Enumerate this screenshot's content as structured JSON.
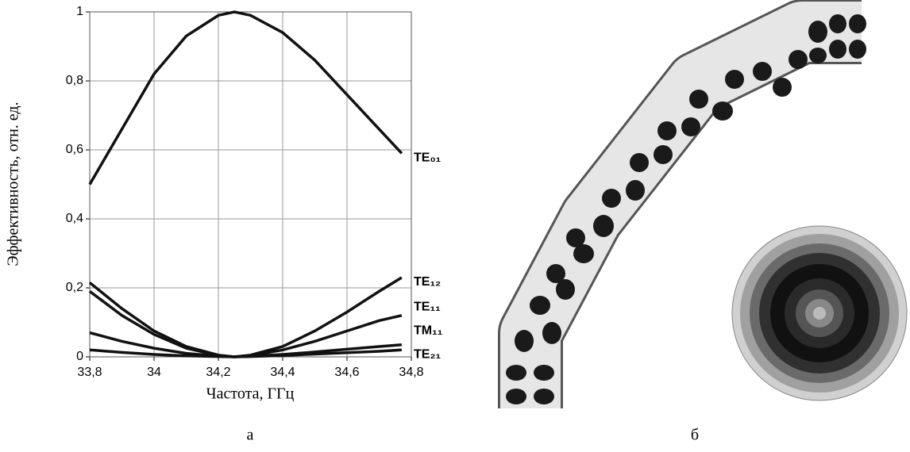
{
  "chart_data": {
    "type": "line",
    "xlabel": "Частота, ГГц",
    "ylabel": "Эффективность, отн. ед.",
    "x": [
      33.8,
      33.9,
      34.0,
      34.1,
      34.2,
      34.25,
      34.3,
      34.4,
      34.5,
      34.6,
      34.7,
      34.77
    ],
    "series": [
      {
        "name": "TE₀₁",
        "color": "#111111",
        "values": [
          0.5,
          0.66,
          0.82,
          0.93,
          0.99,
          1.0,
          0.99,
          0.94,
          0.86,
          0.76,
          0.66,
          0.59
        ]
      },
      {
        "name": "TE₁₂",
        "color": "#111111",
        "values": [
          0.215,
          0.14,
          0.075,
          0.03,
          0.005,
          0,
          0.005,
          0.03,
          0.075,
          0.13,
          0.19,
          0.23
        ]
      },
      {
        "name": "TE₁₁",
        "color": "#111111",
        "values": [
          0.19,
          0.12,
          0.065,
          0.025,
          0.004,
          0,
          0.004,
          0.02,
          0.045,
          0.075,
          0.105,
          0.12
        ]
      },
      {
        "name": "TM₁₁",
        "color": "#111111",
        "values": [
          0.07,
          0.045,
          0.025,
          0.01,
          0.002,
          0,
          0.002,
          0.007,
          0.014,
          0.022,
          0.03,
          0.035
        ]
      },
      {
        "name": "TE₂₁",
        "color": "#111111",
        "values": [
          0.02,
          0.013,
          0.007,
          0.003,
          0.001,
          0,
          0.001,
          0.004,
          0.008,
          0.012,
          0.016,
          0.02
        ]
      }
    ],
    "xlim": [
      33.8,
      34.8
    ],
    "xticks": [
      {
        "value": 33.8,
        "label": "33,8"
      },
      34,
      {
        "value": 34.2,
        "label": "34,2"
      },
      {
        "value": 34.4,
        "label": "34,4"
      },
      {
        "value": 34.6,
        "label": "34,6"
      },
      {
        "value": 34.8,
        "label": "34,8"
      }
    ],
    "ylim": [
      0,
      1
    ],
    "yticks": [
      0,
      {
        "value": 0.2,
        "label": "0,2"
      },
      {
        "value": 0.4,
        "label": "0,4"
      },
      {
        "value": 0.6,
        "label": "0,6"
      },
      {
        "value": 0.8,
        "label": "0,8"
      },
      1
    ],
    "grid": true
  },
  "panels": [
    "а",
    "б"
  ]
}
